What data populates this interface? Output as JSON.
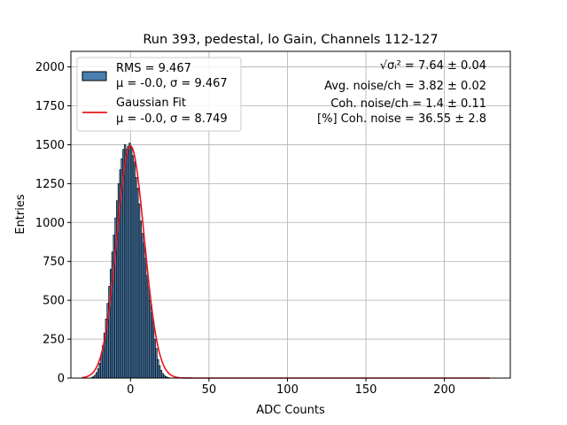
{
  "chart_data": {
    "type": "bar",
    "title": "Run 393, pedestal, lo Gain, Channels 112-127",
    "xlabel": "ADC Counts",
    "ylabel": "Entries",
    "xlim": [
      -38,
      242
    ],
    "ylim": [
      0,
      2100
    ],
    "grid": true,
    "xticks": [
      0,
      50,
      100,
      150,
      200
    ],
    "yticks": [
      0,
      250,
      500,
      750,
      1000,
      1250,
      1500,
      1750,
      2000
    ],
    "legend_position": "upper left",
    "series": [
      {
        "name": "RMS = 9.467",
        "name_line2": "μ = -0.0, σ = 9.467",
        "kind": "histogram",
        "color": "#4a7fb0",
        "edge_color": "#000000",
        "bin_width": 1,
        "bins_start": -25,
        "values": [
          5,
          10,
          20,
          36,
          60,
          95,
          145,
          210,
          290,
          380,
          480,
          590,
          700,
          810,
          920,
          1030,
          1140,
          1250,
          1340,
          1410,
          1470,
          1500,
          1470,
          1490,
          1510,
          1480,
          1430,
          1390,
          1290,
          1220,
          1120,
          1010,
          930,
          870,
          770,
          660,
          590,
          500,
          420,
          360,
          250,
          190,
          120,
          80,
          50,
          30,
          18,
          10,
          5,
          3
        ]
      },
      {
        "name": "Gaussian Fit",
        "name_line2": "μ = -0.0, σ = 8.749",
        "kind": "line",
        "color": "#e8141b",
        "x_range": [
          -31,
          229
        ],
        "mu": 0.0,
        "sigma": 8.749,
        "amplitude": 1492
      }
    ],
    "annotations": [
      {
        "id": "sqrt",
        "prefix_symbol": "√σᵢ²",
        "text": " = 7.64 ± 0.04"
      },
      {
        "id": "avg",
        "text": "Avg. noise/ch = 3.82 ± 0.02"
      },
      {
        "id": "coh",
        "text": "Coh. noise/ch = 1.4 ± 0.11"
      },
      {
        "id": "pct",
        "text": "[%] Coh. noise = 36.55 ± 2.8"
      }
    ]
  }
}
